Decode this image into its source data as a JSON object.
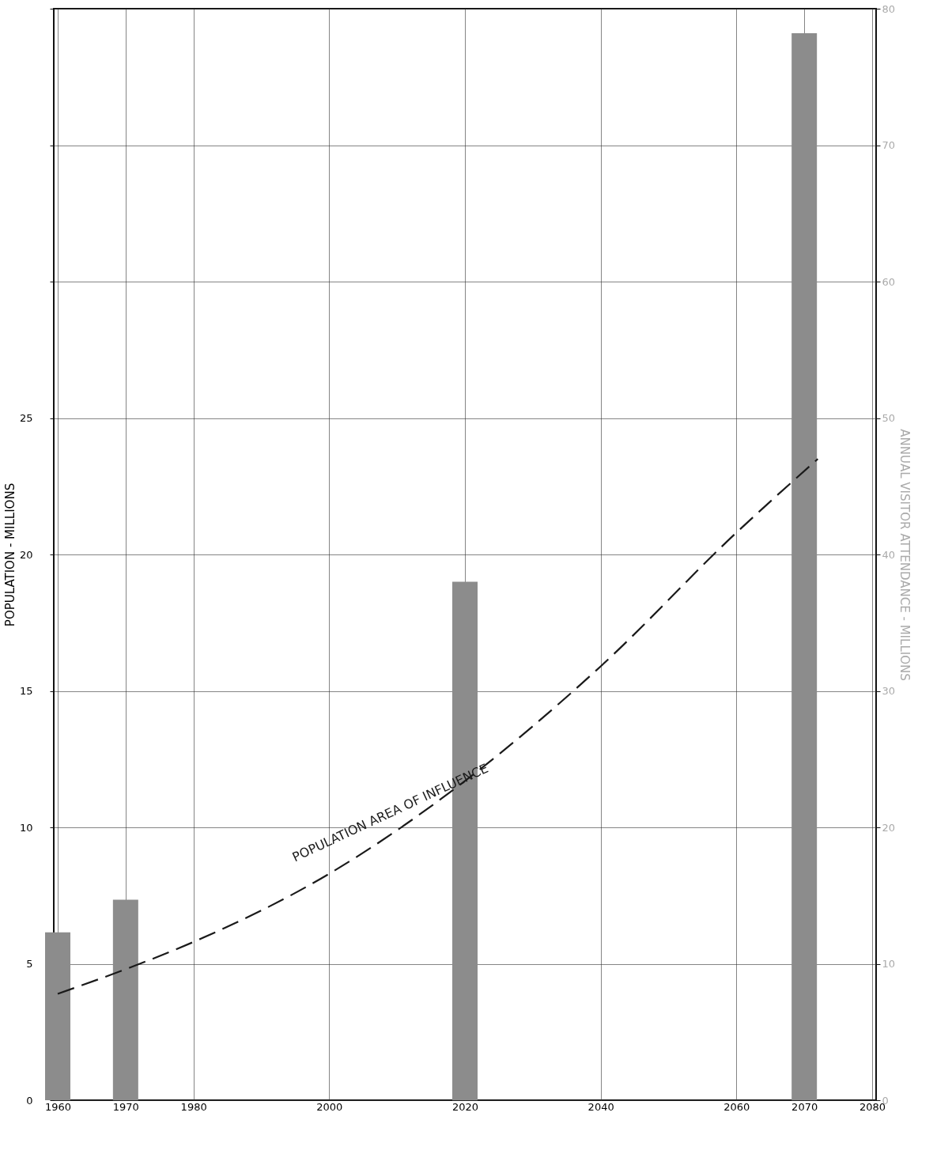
{
  "chart_data": {
    "type": "bar",
    "ylabel": "POPULATION - MILLIONS",
    "y2label": "ANNUAL VISITOR ATTENDANCE - MILLIONS",
    "xlim": [
      1960,
      2080
    ],
    "xticks": [
      1960,
      1970,
      1980,
      2000,
      2020,
      2040,
      2060,
      2070,
      2080
    ],
    "ylim": [
      0,
      40
    ],
    "yticks": [
      0,
      5,
      10,
      15,
      20,
      25,
      {
        "value": 30,
        "label": null
      },
      {
        "value": 35,
        "label": null
      },
      {
        "value": 40,
        "label": null
      }
    ],
    "y2lim": [
      0,
      80
    ],
    "y2ticks": [
      0,
      10,
      20,
      30,
      40,
      50,
      60,
      70,
      80
    ],
    "grid": true,
    "series": [
      {
        "axis": "y2",
        "color": "#8c8c8c",
        "x": [
          1960,
          1970,
          2020,
          2070
        ],
        "values": [
          12.3,
          14.7,
          38.0,
          78.2
        ]
      },
      {
        "type": "line",
        "name": "POPULATION AREA OF INFLUENCE",
        "color": "#1a1a1a",
        "line_style": "dashed",
        "x": [
          1960,
          1970,
          1980,
          2000,
          2020,
          2040,
          2060,
          2072
        ],
        "values": [
          3.9,
          4.8,
          5.8,
          8.3,
          11.7,
          15.9,
          20.8,
          23.5
        ]
      }
    ]
  }
}
